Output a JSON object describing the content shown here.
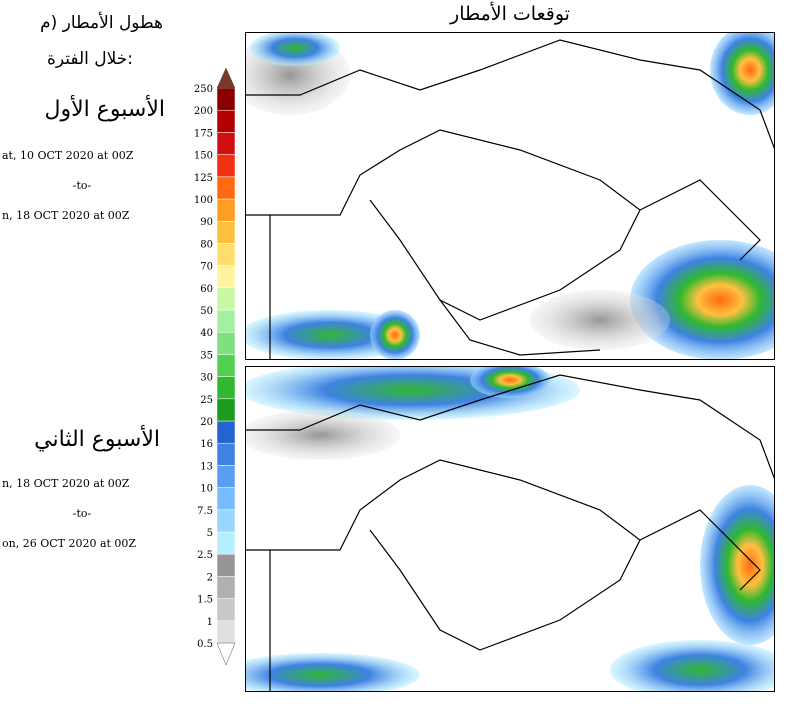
{
  "header": {
    "title": "توقعات الأمطار"
  },
  "sidebar": {
    "caption": "هطول الأمطار (م",
    "period_label": "خلال الفترة:",
    "weeks": [
      {
        "name": "الأسبوع الأول",
        "start": "at, 10 OCT 2020 at 00Z",
        "sep": "-to-",
        "end": "n, 18 OCT 2020 at 00Z"
      },
      {
        "name": "الأسبوع الثاني",
        "start": "n, 18 OCT 2020 at 00Z",
        "sep": "-to-",
        "end": "on, 26 OCT 2020 at 00Z"
      }
    ]
  },
  "legend": {
    "levels": [
      0.5,
      1,
      1.5,
      2,
      2.5,
      5,
      7.5,
      10,
      13,
      16,
      20,
      25,
      30,
      35,
      40,
      50,
      60,
      70,
      80,
      90,
      100,
      125,
      150,
      175,
      200,
      250
    ],
    "colors": [
      "#e0e0e0",
      "#c8c8c8",
      "#b0b0b0",
      "#969696",
      "#b4f0ff",
      "#9ad6ff",
      "#78bcff",
      "#5a9ef2",
      "#3e82e2",
      "#2464d2",
      "#1b9a1b",
      "#30b830",
      "#52d052",
      "#7ee07e",
      "#a2f0a2",
      "#caf7a4",
      "#fff3a2",
      "#ffde6e",
      "#ffc040",
      "#ff9c22",
      "#ff6a10",
      "#f03010",
      "#d01010",
      "#b00000",
      "#8a0000"
    ],
    "over_color": "#7a3a2a",
    "under_color": "#ffffff"
  }
}
